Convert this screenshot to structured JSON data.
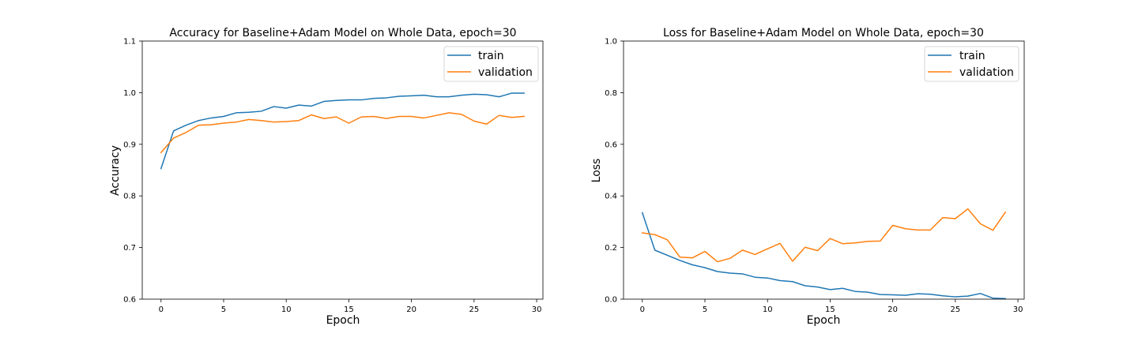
{
  "chart_data": [
    {
      "type": "line",
      "title": "Accuracy for Baseline+Adam Model on Whole Data, epoch=30",
      "xlabel": "Epoch",
      "ylabel": "Accuracy",
      "xlim": [
        -1.5,
        30.5
      ],
      "ylim": [
        0.6,
        1.1
      ],
      "xticks": [
        0,
        5,
        10,
        15,
        20,
        25,
        30
      ],
      "yticks": [
        0.6,
        0.7,
        0.8,
        0.9,
        1.0,
        1.1
      ],
      "xtick_labels": [
        "0",
        "5",
        "10",
        "15",
        "20",
        "25",
        "30"
      ],
      "ytick_labels": [
        "0.6",
        "0.7",
        "0.8",
        "0.9",
        "1.0",
        "1.1"
      ],
      "grid": false,
      "legend": "top-right",
      "x": [
        0,
        1,
        2,
        3,
        4,
        5,
        6,
        7,
        8,
        9,
        10,
        11,
        12,
        13,
        14,
        15,
        16,
        17,
        18,
        19,
        20,
        21,
        22,
        23,
        24,
        25,
        26,
        27,
        28,
        29
      ],
      "series": [
        {
          "name": "train",
          "color": "#1f77b4",
          "values": [
            0.853,
            0.926,
            0.937,
            0.946,
            0.951,
            0.954,
            0.961,
            0.962,
            0.964,
            0.973,
            0.97,
            0.976,
            0.974,
            0.983,
            0.985,
            0.986,
            0.986,
            0.989,
            0.99,
            0.993,
            0.994,
            0.995,
            0.992,
            0.992,
            0.995,
            0.997,
            0.996,
            0.992,
            0.999,
            0.999
          ]
        },
        {
          "name": "validation",
          "color": "#ff7f0e",
          "values": [
            0.884,
            0.912,
            0.923,
            0.937,
            0.938,
            0.941,
            0.943,
            0.948,
            0.946,
            0.943,
            0.944,
            0.946,
            0.957,
            0.95,
            0.953,
            0.941,
            0.953,
            0.954,
            0.95,
            0.954,
            0.954,
            0.951,
            0.956,
            0.961,
            0.958,
            0.945,
            0.939,
            0.956,
            0.952,
            0.954
          ]
        }
      ]
    },
    {
      "type": "line",
      "title": "Loss for Baseline+Adam Model on Whole Data, epoch=30",
      "xlabel": "Epoch",
      "ylabel": "Loss",
      "xlim": [
        -1.5,
        30.5
      ],
      "ylim": [
        0.0,
        1.0
      ],
      "xticks": [
        0,
        5,
        10,
        15,
        20,
        25,
        30
      ],
      "yticks": [
        0.0,
        0.2,
        0.4,
        0.6,
        0.8,
        1.0
      ],
      "xtick_labels": [
        "0",
        "5",
        "10",
        "15",
        "20",
        "25",
        "30"
      ],
      "ytick_labels": [
        "0.0",
        "0.2",
        "0.4",
        "0.6",
        "0.8",
        "1.0"
      ],
      "grid": false,
      "legend": "top-right",
      "x": [
        0,
        1,
        2,
        3,
        4,
        5,
        6,
        7,
        8,
        9,
        10,
        11,
        12,
        13,
        14,
        15,
        16,
        17,
        18,
        19,
        20,
        21,
        22,
        23,
        24,
        25,
        26,
        27,
        28,
        29
      ],
      "series": [
        {
          "name": "train",
          "color": "#1f77b4",
          "values": [
            0.335,
            0.19,
            0.17,
            0.15,
            0.133,
            0.122,
            0.107,
            0.101,
            0.098,
            0.085,
            0.082,
            0.072,
            0.068,
            0.052,
            0.047,
            0.037,
            0.042,
            0.03,
            0.027,
            0.018,
            0.017,
            0.015,
            0.021,
            0.019,
            0.013,
            0.009,
            0.012,
            0.022,
            0.004,
            0.002
          ]
        },
        {
          "name": "validation",
          "color": "#ff7f0e",
          "values": [
            0.257,
            0.25,
            0.23,
            0.163,
            0.16,
            0.185,
            0.145,
            0.158,
            0.19,
            0.173,
            0.195,
            0.216,
            0.147,
            0.201,
            0.188,
            0.235,
            0.215,
            0.218,
            0.224,
            0.225,
            0.286,
            0.273,
            0.268,
            0.268,
            0.316,
            0.312,
            0.35,
            0.292,
            0.267,
            0.337
          ]
        }
      ]
    }
  ]
}
